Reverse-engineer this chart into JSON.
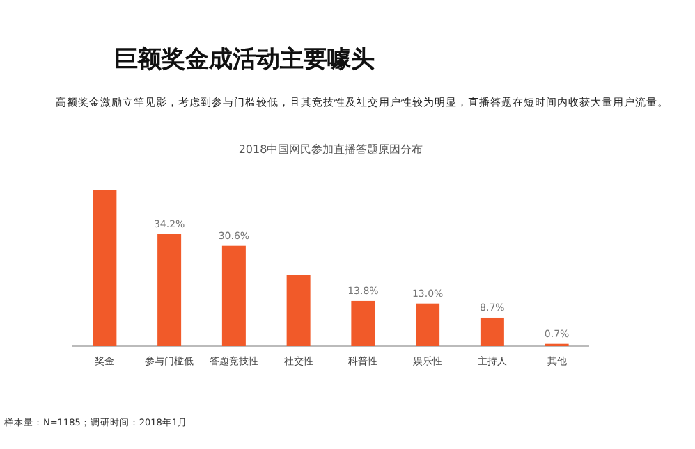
{
  "chart_data": {
    "type": "bar",
    "title": "巨额奖金成活动主要噱头",
    "subtitle": "高额奖金激励立竿见影，考虑到参与门槛较低，且其竞技性及社交用户性较为明显，直播答题在短时间内收获大量用户流量。",
    "categories": [
      "奖金",
      "参与门槛低",
      "答题竞技性",
      "社交性",
      "科普性",
      "娱乐性",
      "主持人",
      "其他"
    ],
    "values": [
      47.5,
      34.2,
      30.6,
      21.8,
      13.8,
      13.0,
      8.7,
      0.7
    ],
    "value_labels": [
      null,
      "34.2%",
      "30.6%",
      null,
      "13.8%",
      "13.0%",
      "8.7%",
      "0.7%"
    ],
    "color": "#f15a29",
    "annotations": [
      "2018中国网民参加直播答题原因分布",
      "样本量：N=1185；调研时间：2018年1月"
    ]
  }
}
